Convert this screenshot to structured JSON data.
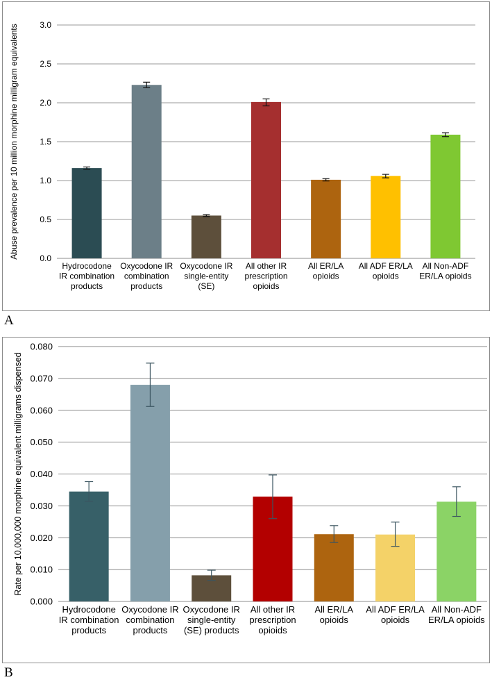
{
  "panels": [
    {
      "label": "A"
    },
    {
      "label": "B"
    }
  ],
  "chart_data": [
    {
      "type": "bar",
      "panel": "A",
      "ylabel": "Abuse prevalence per 10 million morphine milligram equivalents",
      "xlabel": "",
      "ylim": [
        0,
        3.0
      ],
      "yticks": [
        "0.0",
        "0.5",
        "1.0",
        "1.5",
        "2.0",
        "2.5",
        "3.0"
      ],
      "grid": true,
      "categories": [
        [
          "Hydrocodone",
          "IR combination",
          "products"
        ],
        [
          "Oxycodone IR",
          "combination",
          "products"
        ],
        [
          "Oxycodone IR",
          "single-entity",
          "(SE)"
        ],
        [
          "All other IR",
          "prescription",
          "opioids"
        ],
        [
          "All ER/LA",
          "opioids"
        ],
        [
          "All ADF ER/LA",
          "opioids"
        ],
        [
          "All Non-ADF",
          "ER/LA opioids"
        ]
      ],
      "values": [
        1.16,
        2.23,
        0.55,
        2.01,
        1.01,
        1.06,
        1.59
      ],
      "error_low": [
        1.145,
        2.195,
        0.538,
        1.96,
        0.995,
        1.035,
        1.565
      ],
      "error_high": [
        1.175,
        2.265,
        0.562,
        2.05,
        1.025,
        1.08,
        1.615
      ],
      "colors": [
        "#2b4c53",
        "#6c7f88",
        "#5d4f3b",
        "#a52f2f",
        "#ad640f",
        "#ffc000",
        "#7fc832"
      ]
    },
    {
      "type": "bar",
      "panel": "B",
      "ylabel": "Rate per 10,000,000 morphine equivalent milligrams dispensed",
      "xlabel": "",
      "ylim": [
        0,
        0.08
      ],
      "yticks": [
        "0.000",
        "0.010",
        "0.020",
        "0.030",
        "0.040",
        "0.050",
        "0.060",
        "0.070",
        "0.080"
      ],
      "grid": true,
      "categories": [
        [
          "Hydrocodone",
          "IR combination",
          "products"
        ],
        [
          "Oxycodone IR",
          "combination",
          "products"
        ],
        [
          "Oxycodone IR",
          "single-entity",
          "(SE) products"
        ],
        [
          "All other IR",
          "prescription",
          "opioids"
        ],
        [
          "All ER/LA",
          "opioids"
        ],
        [
          "All ADF ER/LA",
          "opioids"
        ],
        [
          "All Non-ADF",
          "ER/LA opioids"
        ]
      ],
      "values": [
        0.0345,
        0.068,
        0.0082,
        0.0329,
        0.0211,
        0.021,
        0.0313
      ],
      "error_low": [
        0.0314,
        0.0612,
        0.0066,
        0.026,
        0.0185,
        0.0173,
        0.0267
      ],
      "error_high": [
        0.0376,
        0.0748,
        0.0098,
        0.0397,
        0.0238,
        0.0249,
        0.036
      ],
      "colors": [
        "#376068",
        "#859fab",
        "#5d4f3b",
        "#b30000",
        "#ad640f",
        "#f4d268",
        "#8bd366"
      ]
    }
  ]
}
